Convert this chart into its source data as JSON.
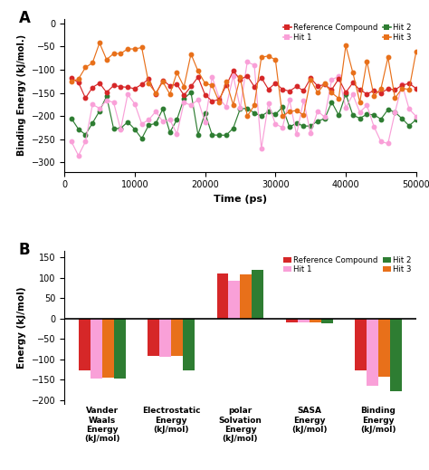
{
  "panel_a": {
    "xlabel": "Time (ps)",
    "ylabel": "Binding Energy (kJ/mol.)",
    "xlim": [
      0,
      50000
    ],
    "ylim": [
      -320,
      10
    ],
    "yticks": [
      -300,
      -250,
      -200,
      -150,
      -100,
      -50,
      0
    ],
    "xticks": [
      0,
      10000,
      20000,
      30000,
      40000,
      50000
    ],
    "colors": {
      "ref": "#d62728",
      "hit1": "#f9a0d8",
      "hit2": "#2e7d32",
      "hit3": "#e8701a"
    },
    "n_points": 50
  },
  "panel_b": {
    "ylabel": "Energy (kJ/mol)",
    "ylim": [
      -210,
      165
    ],
    "yticks": [
      -200,
      -150,
      -100,
      -50,
      0,
      50,
      100,
      150
    ],
    "categories": [
      "Vander\nWaals\nEnergy\n(kJ/mol)",
      "Electrostatic\nEnergy\n(kJ/mol)",
      "polar\nSolvation\nEnergy\n(kJ/mol)",
      "SASA\nEnergy\n(kJ/mol)",
      "Binding\nEnergy\n(kJ/mol)"
    ],
    "colors": {
      "ref": "#d62728",
      "hit1": "#f9a0d8",
      "hit2": "#2e7d32",
      "hit3": "#e8701a"
    },
    "values": {
      "ref": [
        -127,
        -92,
        110,
        -10,
        -128
      ],
      "hit1": [
        -148,
        -93,
        93,
        -10,
        -165
      ],
      "hit2": [
        -148,
        -128,
        120,
        -12,
        -178
      ],
      "hit3": [
        -145,
        -92,
        108,
        -10,
        -143
      ]
    }
  },
  "legend_labels": [
    "Reference Compound",
    "Hit 1",
    "Hit 2",
    "Hit 3"
  ]
}
